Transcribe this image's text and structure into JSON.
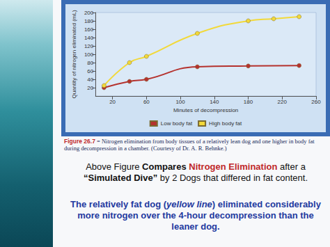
{
  "chart_data": {
    "type": "line",
    "x_label": "Minutes of decompression",
    "y_label": "Quantity of nitrogen eliminated (mL)",
    "xlim": [
      0,
      260
    ],
    "xticks": [
      20,
      60,
      100,
      140,
      180,
      220,
      260
    ],
    "ylim": [
      0,
      200
    ],
    "yticks": [
      20,
      40,
      60,
      80,
      100,
      120,
      140,
      160,
      180,
      200
    ],
    "grid": false,
    "legend": "bottom",
    "series": [
      {
        "name": "Low body fat",
        "color": "#b5322e",
        "marker": "circle",
        "x": [
          10,
          40,
          60,
          120,
          180,
          240
        ],
        "values": [
          20,
          35,
          40,
          70,
          72,
          73
        ]
      },
      {
        "name": "High body fat",
        "color": "#f2d93a",
        "marker": "circle",
        "x": [
          10,
          40,
          60,
          120,
          180,
          210,
          240
        ],
        "values": [
          25,
          80,
          95,
          150,
          180,
          185,
          190
        ]
      }
    ],
    "annotations": [
      [
        "Figure 26.7",
        " = Nitrogen elimination from body tissues of a relatively lean dog and one higher in body fat during decompression in a chamber. (Courtesy of Dr. A. R. Behnke.)"
      ],
      [
        "Above Figure ",
        "Compares ",
        "Nitrogen Elimination",
        " after a ",
        "“Simulated Dive”",
        " by 2 Dogs that differed in fat content."
      ],
      [
        "The relatively fat dog (",
        "yellow line",
        ") eliminated considerably more nitrogen over the 4-hour decompression than the leaner dog."
      ]
    ]
  }
}
